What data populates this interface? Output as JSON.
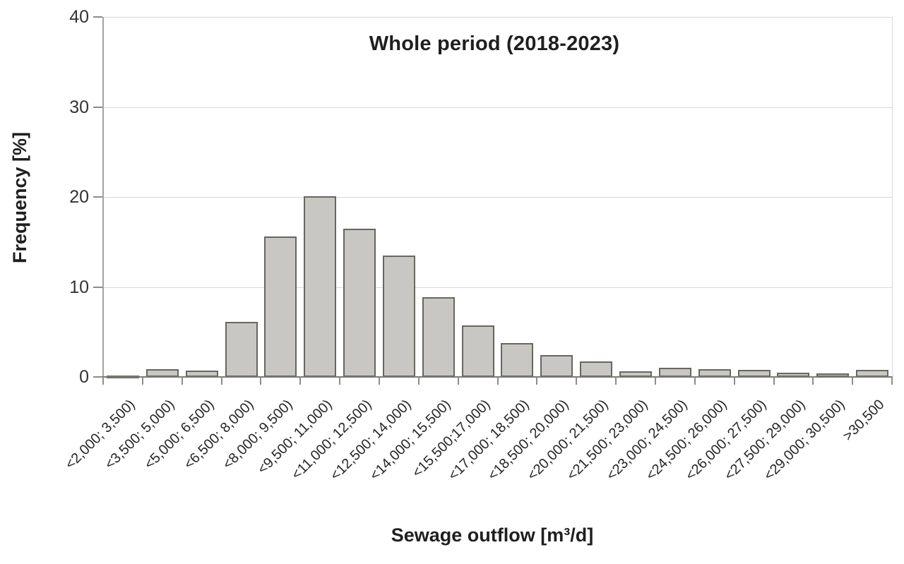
{
  "chart_data": {
    "type": "bar",
    "title": "Whole period (2018-2023)",
    "xlabel": "Sewage outflow [m³/d]",
    "ylabel": "Frequency [%]",
    "ylim": [
      0,
      40
    ],
    "yticks": [
      0,
      10,
      20,
      30,
      40
    ],
    "grid": true,
    "legend": "none",
    "bar_fill": "#c8c7c4",
    "bar_border": "#67675f",
    "categories": [
      "<2,000; 3,500)",
      "<3,500; 5,000)",
      "<5,000; 6,500)",
      "<6,500; 8,000)",
      "<8,000; 9,500)",
      "<9,500; 11,000)",
      "<11,000; 12,500)",
      "<12,500; 14,000)",
      "<14,000; 15,500)",
      "<15,500;17,000)",
      "<17,000; 18,500)",
      "<18,500; 20,000)",
      "<20,000; 21,500)",
      "<21,500; 23,000)",
      "<23,000; 24,500)",
      "<24,500; 26,000)",
      "<26,000; 27,500)",
      "<27,500; 29,000)",
      "<29,000; 30,500)",
      ">30,500"
    ],
    "values": [
      0.2,
      0.9,
      0.7,
      6.1,
      15.6,
      20.1,
      16.5,
      13.5,
      8.9,
      5.7,
      3.8,
      2.4,
      1.7,
      0.6,
      1.0,
      0.9,
      0.8,
      0.5,
      0.4,
      0.8
    ]
  }
}
